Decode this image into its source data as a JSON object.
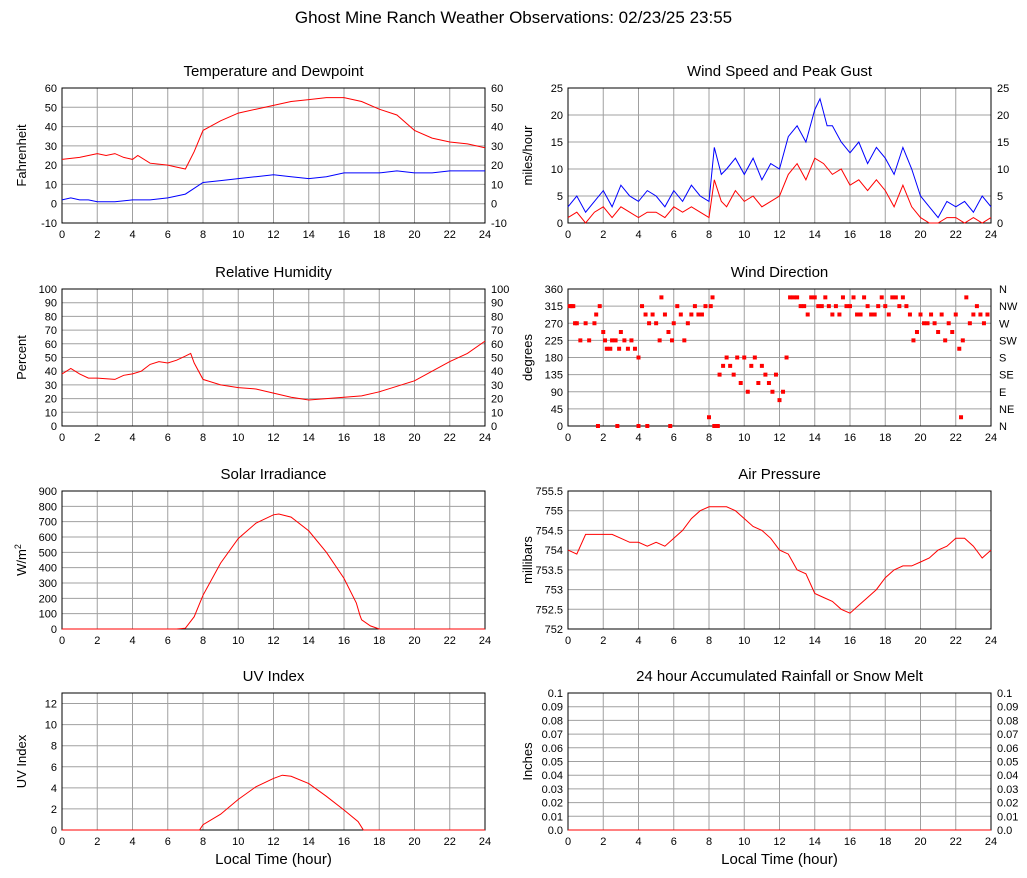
{
  "page": {
    "title": "Ghost Mine Ranch Weather Observations: 02/23/25 23:55"
  },
  "xaxis": {
    "label": "Local Time (hour)",
    "ticks": [
      "0",
      "2",
      "4",
      "6",
      "8",
      "10",
      "12",
      "14",
      "16",
      "18",
      "20",
      "22",
      "24"
    ]
  },
  "colors": {
    "red": "#ff0000",
    "blue": "#0000ff",
    "grid": "#a0a0a0"
  },
  "chart_data": [
    {
      "id": "temp",
      "type": "line",
      "title": "Temperature and Dewpoint",
      "ylabel": "Fahrenheit",
      "xlim": [
        0,
        24
      ],
      "ylim": [
        -10,
        60
      ],
      "yticks": [
        -10,
        0,
        10,
        20,
        30,
        40,
        50,
        60
      ],
      "right_axis": true,
      "grid": true,
      "series": [
        {
          "color": "#ff0000",
          "x": [
            0,
            1,
            1.5,
            2,
            2.5,
            3,
            3.5,
            4,
            4.3,
            5,
            6,
            6.5,
            7,
            7.5,
            8,
            9,
            10,
            11,
            12,
            13,
            14,
            15,
            16,
            17,
            18,
            19,
            20,
            21,
            22,
            23,
            24
          ],
          "y": [
            23,
            24,
            25,
            26,
            25,
            26,
            24,
            23,
            25,
            21,
            20,
            19,
            18,
            27,
            38,
            43,
            47,
            49,
            51,
            53,
            54,
            55,
            55,
            53,
            49,
            46,
            38,
            34,
            32,
            31,
            29
          ]
        },
        {
          "color": "#0000ff",
          "x": [
            0,
            0.5,
            1,
            1.5,
            2,
            3,
            4,
            5,
            6,
            7,
            7.5,
            8,
            9,
            10,
            11,
            12,
            13,
            14,
            15,
            16,
            17,
            18,
            19,
            20,
            21,
            22,
            23,
            24
          ],
          "y": [
            2,
            3,
            2,
            2,
            1,
            1,
            2,
            2,
            3,
            5,
            8,
            11,
            12,
            13,
            14,
            15,
            14,
            13,
            14,
            16,
            16,
            16,
            17,
            16,
            16,
            17,
            17,
            17
          ]
        }
      ]
    },
    {
      "id": "wind",
      "type": "line",
      "title": "Wind Speed and Peak Gust",
      "ylabel": "miles/hour",
      "xlim": [
        0,
        24
      ],
      "ylim": [
        0,
        25
      ],
      "yticks": [
        0,
        5,
        10,
        15,
        20,
        25
      ],
      "right_axis": true,
      "grid": true,
      "series": [
        {
          "color": "#0000ff",
          "x": [
            0,
            0.5,
            1,
            1.5,
            2,
            2.5,
            3,
            3.5,
            4,
            4.5,
            5,
            5.5,
            6,
            6.5,
            7,
            7.5,
            8,
            8.3,
            8.7,
            9,
            9.5,
            10,
            10.5,
            11,
            11.5,
            12,
            12.5,
            13,
            13.5,
            14,
            14.3,
            14.7,
            15,
            15.5,
            16,
            16.5,
            17,
            17.5,
            18,
            18.5,
            19,
            19.5,
            20,
            20.5,
            21,
            21.5,
            22,
            22.5,
            23,
            23.5,
            24
          ],
          "y": [
            3,
            5,
            2,
            4,
            6,
            3,
            7,
            5,
            4,
            6,
            5,
            3,
            6,
            4,
            7,
            5,
            4,
            14,
            9,
            10,
            12,
            9,
            12,
            8,
            11,
            10,
            16,
            18,
            15,
            21,
            23,
            18,
            18,
            15,
            13,
            15,
            11,
            14,
            12,
            9,
            14,
            10,
            5,
            3,
            1,
            4,
            3,
            4,
            2,
            5,
            3
          ]
        },
        {
          "color": "#ff0000",
          "x": [
            0,
            0.5,
            1,
            1.5,
            2,
            2.5,
            3,
            3.5,
            4,
            4.5,
            5,
            5.5,
            6,
            6.5,
            7,
            7.5,
            8,
            8.3,
            8.7,
            9,
            9.5,
            10,
            10.5,
            11,
            11.5,
            12,
            12.5,
            13,
            13.5,
            14,
            14.5,
            15,
            15.5,
            16,
            16.5,
            17,
            17.5,
            18,
            18.5,
            19,
            19.5,
            20,
            20.5,
            21,
            21.5,
            22,
            22.5,
            23,
            23.5,
            24
          ],
          "y": [
            1,
            2,
            0,
            2,
            3,
            1,
            3,
            2,
            1,
            2,
            2,
            1,
            3,
            2,
            3,
            2,
            1,
            8,
            4,
            3,
            6,
            4,
            5,
            3,
            4,
            5,
            9,
            11,
            8,
            12,
            11,
            9,
            10,
            7,
            8,
            6,
            8,
            6,
            3,
            7,
            3,
            1,
            0,
            0,
            1,
            1,
            0,
            1,
            0,
            1
          ]
        }
      ]
    },
    {
      "id": "rh",
      "type": "line",
      "title": "Relative Humidity",
      "ylabel": "Percent",
      "xlim": [
        0,
        24
      ],
      "ylim": [
        0,
        100
      ],
      "yticks": [
        0,
        10,
        20,
        30,
        40,
        50,
        60,
        70,
        80,
        90,
        100
      ],
      "right_axis": true,
      "grid": true,
      "series": [
        {
          "color": "#ff0000",
          "x": [
            0,
            0.5,
            1,
            1.5,
            2,
            3,
            3.5,
            4,
            4.5,
            5,
            5.5,
            6,
            6.5,
            7,
            7.3,
            7.5,
            8,
            9,
            10,
            11,
            12,
            13,
            14,
            15,
            16,
            17,
            18,
            19,
            20,
            21,
            22,
            23,
            24
          ],
          "y": [
            38,
            42,
            38,
            35,
            35,
            34,
            37,
            38,
            40,
            45,
            47,
            46,
            48,
            51,
            53,
            46,
            34,
            30,
            28,
            27,
            24,
            21,
            19,
            20,
            21,
            22,
            25,
            29,
            33,
            40,
            47,
            53,
            62
          ]
        }
      ]
    },
    {
      "id": "dir",
      "type": "scatter",
      "title": "Wind Direction",
      "ylabel": "degrees",
      "xlim": [
        0,
        24
      ],
      "ylim": [
        0,
        360
      ],
      "yticks": [
        0,
        45,
        90,
        135,
        180,
        225,
        270,
        315,
        360
      ],
      "right_labels": [
        "N",
        "NE",
        "E",
        "SE",
        "S",
        "SW",
        "W",
        "NW",
        "N"
      ],
      "grid": true,
      "series": [
        {
          "color": "#ff0000",
          "x": [
            0.1,
            0.2,
            0.3,
            0.4,
            0.5,
            0.7,
            1,
            1.2,
            1.5,
            1.6,
            1.8,
            2,
            2.1,
            2.2,
            2.4,
            2.5,
            2.7,
            2.9,
            3,
            3.2,
            3.4,
            3.6,
            3.8,
            4,
            4.2,
            4.4,
            4.6,
            4.8,
            5,
            5.2,
            5.3,
            5.5,
            5.7,
            5.9,
            6,
            6.2,
            6.4,
            6.6,
            6.8,
            7,
            7.2,
            7.4,
            7.6,
            7.8,
            8,
            8.1,
            8.2,
            8.4,
            8.6,
            8.8,
            9,
            9.2,
            9.4,
            9.6,
            9.8,
            10,
            10.2,
            10.4,
            10.6,
            10.8,
            11,
            11.2,
            11.4,
            11.6,
            11.8,
            12,
            12.2,
            12.4,
            12.6,
            12.8,
            13,
            13.2,
            13.4,
            13.6,
            13.8,
            14,
            14.2,
            14.4,
            14.6,
            14.8,
            15,
            15.2,
            15.4,
            15.6,
            15.8,
            16,
            16.2,
            16.4,
            16.6,
            16.8,
            17,
            17.2,
            17.4,
            17.6,
            17.8,
            18,
            18.2,
            18.4,
            18.6,
            18.8,
            19,
            19.2,
            19.4,
            19.6,
            19.8,
            20,
            20.2,
            20.4,
            20.6,
            20.8,
            21,
            21.2,
            21.4,
            21.6,
            21.8,
            22,
            22.2,
            22.4,
            22.6,
            22.8,
            23,
            23.2,
            23.4,
            23.6,
            23.8,
            1.7,
            2.8,
            4,
            4.5,
            5.8,
            8.3,
            8.5,
            22.3
          ],
          "y": [
            315,
            315,
            315,
            270,
            270,
            225,
            270,
            225,
            270,
            293,
            315,
            247,
            225,
            203,
            203,
            225,
            225,
            203,
            247,
            225,
            203,
            225,
            203,
            180,
            315,
            293,
            270,
            293,
            270,
            225,
            338,
            293,
            247,
            225,
            270,
            315,
            293,
            225,
            270,
            293,
            315,
            293,
            293,
            315,
            23,
            315,
            338,
            0,
            135,
            158,
            180,
            158,
            135,
            180,
            113,
            180,
            90,
            158,
            180,
            113,
            158,
            135,
            113,
            90,
            135,
            68,
            90,
            180,
            338,
            338,
            338,
            315,
            315,
            293,
            338,
            338,
            315,
            315,
            338,
            315,
            293,
            315,
            293,
            338,
            315,
            315,
            338,
            293,
            293,
            338,
            315,
            293,
            293,
            315,
            338,
            315,
            293,
            338,
            338,
            315,
            338,
            315,
            293,
            225,
            247,
            293,
            270,
            270,
            293,
            270,
            247,
            293,
            225,
            270,
            247,
            293,
            203,
            225,
            338,
            270,
            293,
            315,
            293,
            270,
            293,
            0,
            0,
            0,
            0,
            0,
            0,
            0,
            23
          ]
        }
      ]
    },
    {
      "id": "solar",
      "type": "line",
      "title": "Solar Irradiance",
      "ylabel": "W/m2",
      "xlim": [
        0,
        24
      ],
      "ylim": [
        0,
        900
      ],
      "yticks": [
        0,
        100,
        200,
        300,
        400,
        500,
        600,
        700,
        800,
        900
      ],
      "right_axis": false,
      "grid": true,
      "series": [
        {
          "color": "#ff0000",
          "x": [
            0,
            6.5,
            7,
            7.5,
            8,
            9,
            10,
            11,
            12,
            12.3,
            13,
            14,
            15,
            16,
            16.7,
            16.9,
            17,
            17.5,
            18,
            24
          ],
          "y": [
            0,
            0,
            5,
            80,
            220,
            430,
            590,
            690,
            745,
            750,
            730,
            640,
            500,
            330,
            170,
            90,
            60,
            20,
            0,
            0
          ]
        }
      ]
    },
    {
      "id": "pressure",
      "type": "line",
      "title": "Air Pressure",
      "ylabel": "millibars",
      "xlim": [
        0,
        24
      ],
      "ylim": [
        752.0,
        755.5
      ],
      "yticks": [
        752.0,
        752.5,
        753.0,
        753.5,
        754.0,
        754.5,
        755.0,
        755.5
      ],
      "right_axis": false,
      "grid": true,
      "series": [
        {
          "color": "#ff0000",
          "x": [
            0,
            0.5,
            1,
            1.5,
            2,
            2.5,
            3,
            3.5,
            4,
            4.5,
            5,
            5.5,
            6,
            6.5,
            7,
            7.5,
            8,
            8.5,
            9,
            9.5,
            10,
            10.5,
            11,
            11.5,
            12,
            12.5,
            13,
            13.5,
            14,
            14.5,
            15,
            15.5,
            16,
            16.5,
            17,
            17.5,
            18,
            18.5,
            19,
            19.5,
            20,
            20.5,
            21,
            21.5,
            22,
            22.5,
            23,
            23.5,
            24
          ],
          "y": [
            754.0,
            753.9,
            754.4,
            754.4,
            754.4,
            754.4,
            754.3,
            754.2,
            754.2,
            754.1,
            754.2,
            754.1,
            754.3,
            754.5,
            754.8,
            755.0,
            755.1,
            755.1,
            755.1,
            755.0,
            754.8,
            754.6,
            754.5,
            754.3,
            754.0,
            753.9,
            753.5,
            753.4,
            752.9,
            752.8,
            752.7,
            752.5,
            752.4,
            752.6,
            752.8,
            753.0,
            753.3,
            753.5,
            753.6,
            753.6,
            753.7,
            753.8,
            754.0,
            754.1,
            754.3,
            754.3,
            754.1,
            753.8,
            754.0
          ]
        }
      ]
    },
    {
      "id": "uv",
      "type": "line",
      "title": "UV Index",
      "ylabel": "UV Index",
      "xlim": [
        0,
        24
      ],
      "ylim": [
        0,
        13
      ],
      "yticks": [
        0,
        2,
        4,
        6,
        8,
        10,
        12
      ],
      "right_axis": false,
      "grid": true,
      "show_xlabel": true,
      "series": [
        {
          "color": "#ff0000",
          "x": [
            0,
            7.8,
            8,
            9,
            10,
            11,
            12,
            12.5,
            13,
            14,
            15,
            16,
            16.8,
            17.1,
            24
          ],
          "y": [
            0,
            0,
            0.5,
            1.5,
            2.9,
            4.1,
            4.9,
            5.2,
            5.1,
            4.4,
            3.2,
            1.9,
            0.8,
            0,
            0
          ]
        }
      ]
    },
    {
      "id": "rain",
      "type": "line",
      "title": "24 hour Accumulated Rainfall or Snow Melt",
      "ylabel": "Inches",
      "xlim": [
        0,
        24
      ],
      "ylim": [
        0,
        0.1
      ],
      "yticks": [
        0.0,
        0.01,
        0.02,
        0.03,
        0.04,
        0.05,
        0.06,
        0.07,
        0.08,
        0.09,
        0.1
      ],
      "ytick_labels": [
        "0.0",
        "0.01",
        "0.02",
        "0.03",
        "0.04",
        "0.05",
        "0.06",
        "0.07",
        "0.08",
        "0.09",
        "0.1"
      ],
      "right_axis": true,
      "grid": true,
      "show_xlabel": true,
      "series": [
        {
          "color": "#ff0000",
          "x": [
            0,
            24
          ],
          "y": [
            0,
            0
          ]
        }
      ]
    }
  ]
}
